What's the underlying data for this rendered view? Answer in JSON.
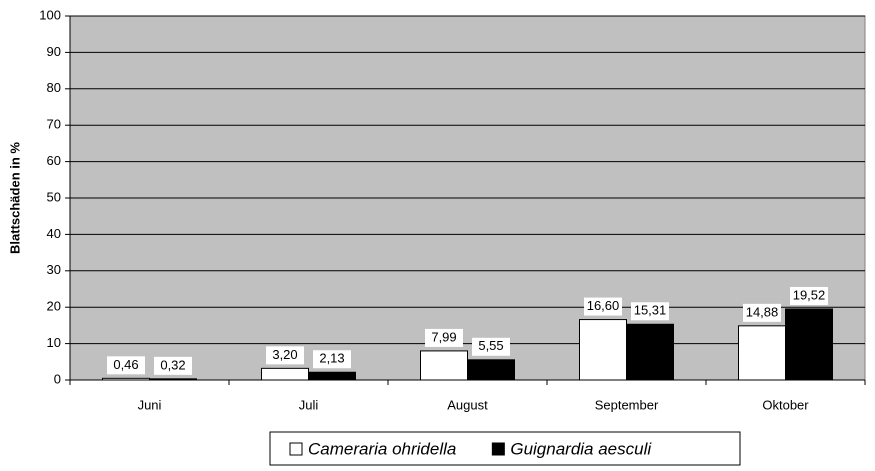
{
  "chart_data": {
    "type": "bar",
    "y_label": "Blattschäden in %",
    "categories": [
      "Juni",
      "Juli",
      "August",
      "September",
      "Oktober"
    ],
    "series": [
      {
        "name": "Cameraria ohridella",
        "color": "#ffffff",
        "values": [
          0.46,
          3.2,
          7.99,
          16.6,
          14.88
        ],
        "value_labels": [
          "0,46",
          "3,20",
          "7,99",
          "16,60",
          "14,88"
        ]
      },
      {
        "name": "Guignardia aesculi",
        "color": "#000000",
        "values": [
          0.32,
          2.13,
          5.55,
          15.31,
          19.52
        ],
        "value_labels": [
          "0,32",
          "2,13",
          "5,55",
          "15,31",
          "19,52"
        ]
      }
    ],
    "ylim": [
      0,
      100
    ],
    "yticks": [
      0,
      10,
      20,
      30,
      40,
      50,
      60,
      70,
      80,
      90,
      100
    ],
    "grid": true,
    "background": "#c0c0c0",
    "legend": "bottom"
  }
}
